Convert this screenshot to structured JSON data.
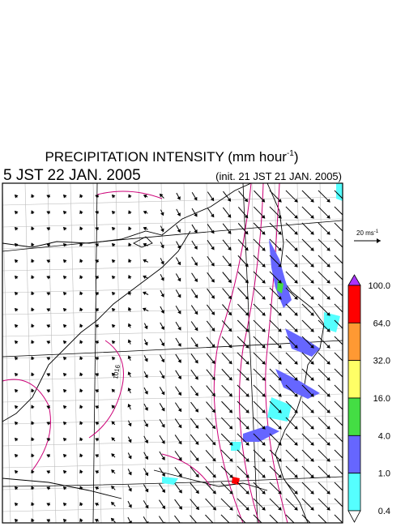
{
  "header": {
    "title": "PRECIPITATION INTENSITY (mm hour",
    "title_sup": "-1",
    "title_end": ")",
    "valid_time": "5 JST 22 JAN. 2005",
    "init_time": "(init. 21 JST 21 JAN. 2005)"
  },
  "vector_legend": {
    "label": "20 ms",
    "label_sup": "-1"
  },
  "colorbar": {
    "levels": [
      {
        "label": "100.0",
        "color": "#ff0000"
      },
      {
        "label": "64.0",
        "color": "#ff9933"
      },
      {
        "label": "32.0",
        "color": "#ffff66"
      },
      {
        "label": "16.0",
        "color": "#44dd44"
      },
      {
        "label": "4.0",
        "color": "#6666ff"
      },
      {
        "label": "1.0",
        "color": "#55ffff"
      },
      {
        "label": "0.4",
        "color": "#ffffff"
      }
    ],
    "over_color": "#aa33ff"
  },
  "contour_labels": [
    "1016"
  ]
}
